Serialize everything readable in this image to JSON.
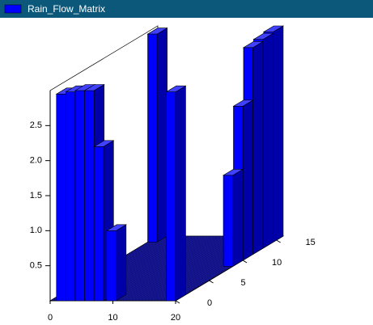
{
  "chart_data": {
    "type": "bar3d",
    "series": [
      {
        "name": "Rain_Flow_Matrix",
        "color": "#0000ff",
        "x": [
          1,
          2.5,
          4,
          5.5,
          7,
          9,
          18.5,
          0,
          18.5,
          18.5,
          18.5,
          18.5,
          18.5
        ],
        "y": [
          0,
          0,
          0,
          0,
          0,
          0,
          0,
          14.5,
          8.5,
          10,
          11.5,
          13,
          14.5
        ],
        "values": [
          2.95,
          2.98,
          3.0,
          3.0,
          2.2,
          1.0,
          2.98,
          2.97,
          1.3,
          2.2,
          2.95,
          2.98,
          3.0
        ]
      }
    ],
    "xlim": [
      0,
      20
    ],
    "ylim": [
      0,
      16
    ],
    "zlim": [
      0,
      3
    ],
    "xticks": [
      0,
      10,
      20
    ],
    "yticks": [
      0,
      5,
      10,
      15
    ],
    "zticks": [
      {
        "value": 0.5,
        "label": "0.5"
      },
      {
        "value": 1,
        "label": "1.0"
      },
      {
        "value": 1.5,
        "label": "1.5"
      },
      {
        "value": 2,
        "label": "2.0"
      },
      {
        "value": 2.5,
        "label": "2.5"
      }
    ]
  }
}
